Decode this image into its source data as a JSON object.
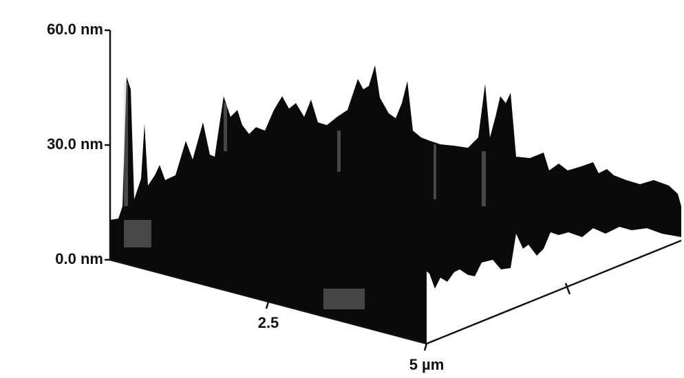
{
  "chart_data": {
    "type": "surface",
    "zlim": [
      0,
      60
    ],
    "zticks": [
      {
        "value": 0,
        "label": "0.0 nm"
      },
      {
        "value": 30,
        "label": "30.0 nm"
      },
      {
        "value": 60,
        "label": "60.0 nm"
      }
    ],
    "xlim": [
      0,
      5
    ],
    "xticks": [
      {
        "value": 2.5,
        "label": "2.5"
      },
      {
        "value": 5,
        "label": "5 µm"
      }
    ]
  }
}
